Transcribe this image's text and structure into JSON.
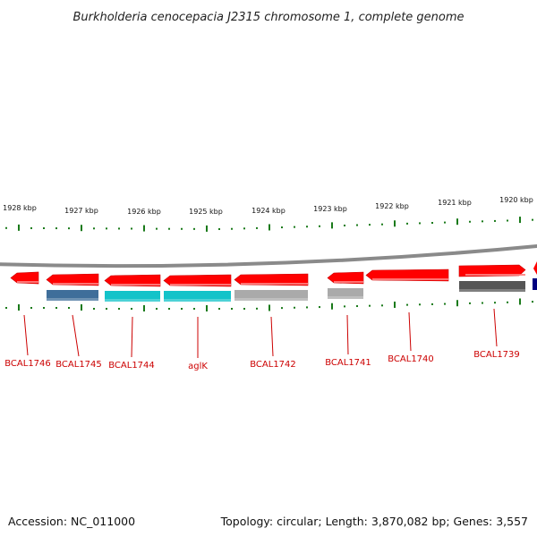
{
  "title": "Burkholderia cenocepacia J2315 chromosome 1, complete genome",
  "footer": {
    "accession": "Accession: NC_011000",
    "summary": "Topology: circular; Length: 3,870,082 bp; Genes: 3,557"
  },
  "scale": {
    "labels": [
      "1928 kbp",
      "1927 kbp",
      "1926 kbp",
      "1925 kbp",
      "1924 kbp",
      "1923 kbp",
      "1922 kbp",
      "1921 kbp",
      "1920 kbp"
    ]
  },
  "genes": [
    {
      "label": "BCAL1746",
      "strand": "reverse",
      "color": "#ff0000",
      "cds_color": null
    },
    {
      "label": "BCAL1745",
      "strand": "reverse",
      "color": "#ff0000",
      "cds_color": "#3f6e9a"
    },
    {
      "label": "BCAL1744",
      "strand": "reverse",
      "color": "#ff0000",
      "cds_color": "#13c3c9"
    },
    {
      "label": "aglK",
      "strand": "reverse",
      "color": "#ff0000",
      "cds_color": "#13c3c9"
    },
    {
      "label": "BCAL1742",
      "strand": "reverse",
      "color": "#ff0000",
      "cds_color": "#aaaaaa"
    },
    {
      "label": "BCAL1741",
      "strand": "reverse",
      "color": "#ff0000",
      "cds_color": "#aaaaaa"
    },
    {
      "label": "BCAL1740",
      "strand": "reverse",
      "color": "#ff0000",
      "cds_color": null
    },
    {
      "label": "BCAL1739",
      "strand": "forward",
      "color": "#ff0000",
      "cds_color": "#555555"
    }
  ],
  "colors": {
    "backbone": "#8a8a8a",
    "tick": "#1a7a1a",
    "label": "#cc0000",
    "edge_gene": "#ff0000",
    "edge_box": "#000080"
  }
}
